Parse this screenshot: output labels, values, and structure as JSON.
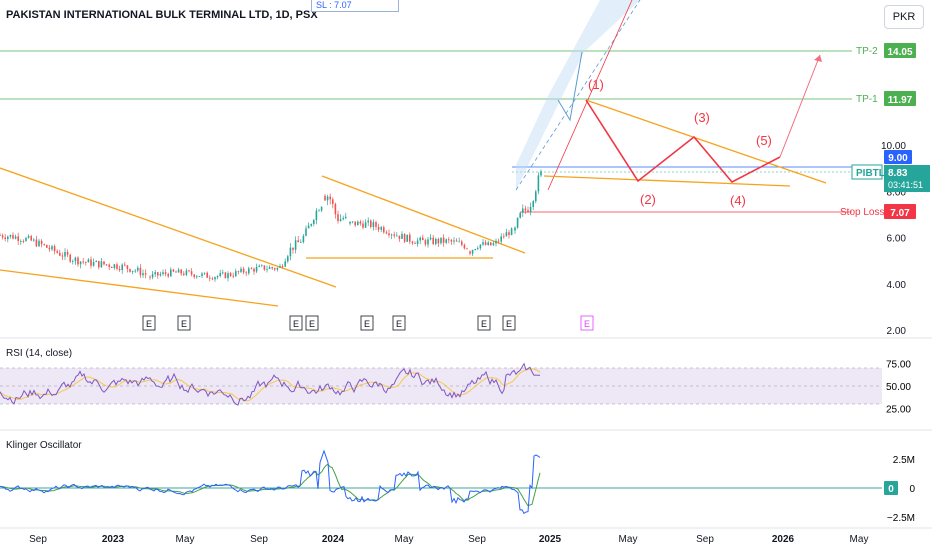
{
  "header": {
    "title": "PAKISTAN INTERNATIONAL BULK TERMINAL LTD, 1D, PSX",
    "sl_note": "SL : 7.07",
    "currency": "PKR"
  },
  "chart_data": [
    {
      "type": "line",
      "name": "price",
      "y_ticks": [
        "10.00",
        "8.00",
        "6.00",
        "4.00",
        "2.00"
      ],
      "x_ticks": [
        "Sep",
        "2023",
        "May",
        "Sep",
        "2024",
        "May",
        "Sep",
        "2025",
        "May",
        "Sep",
        "2026",
        "May"
      ],
      "levels": {
        "tp2": {
          "label": "TP-2",
          "value": "14.05"
        },
        "tp1": {
          "label": "TP-1",
          "value": "11.97"
        },
        "stop": {
          "label": "Stop Loss",
          "value": "7.07"
        },
        "alert": {
          "value": "9.00"
        },
        "ticker": {
          "label": "PIBTL",
          "value": "8.83",
          "countdown": "03:41:51"
        }
      },
      "wave_labels": [
        "(1)",
        "(2)",
        "(3)",
        "(4)",
        "(5)"
      ],
      "earnings_markers": [
        "E",
        "E",
        "E",
        "E",
        "E",
        "E",
        "E",
        "E",
        "E"
      ],
      "colors": {
        "up": "#26a69a",
        "down": "#ef5350",
        "trend": "#f7a21b",
        "wave": "#f23645",
        "tp": "#4caf50",
        "label_blue": "#2962ff"
      }
    },
    {
      "type": "line",
      "name": "RSI (14, close)",
      "y_ticks": [
        "75.00",
        "50.00",
        "25.00"
      ],
      "bands": [
        70,
        30
      ],
      "colors": {
        "rsi": "#7e57c2",
        "ma": "#f7c948",
        "band": "#ede7f6"
      }
    },
    {
      "type": "line",
      "name": "Klinger Oscillator",
      "y_ticks": [
        "2.5M",
        "0",
        "−2.5M"
      ],
      "colors": {
        "kvo": "#2962ff",
        "signal": "#43a047",
        "zero": "#00897b"
      }
    }
  ]
}
